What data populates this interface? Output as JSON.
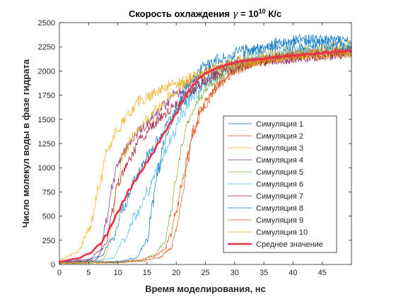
{
  "chart_data": {
    "type": "line",
    "title": {
      "prefix": "Скорость охлаждения ",
      "symbol": "γ",
      "eq": " = 10",
      "exponent": "10",
      "suffix": " К/с"
    },
    "xlabel": "Время моделирования, нс",
    "ylabel": "Число молекул воды в фазе гидрата",
    "xlim": [
      0,
      50
    ],
    "ylim": [
      0,
      2500
    ],
    "xticks": [
      0,
      5,
      10,
      15,
      20,
      25,
      30,
      35,
      40,
      45
    ],
    "yticks": [
      0,
      250,
      500,
      750,
      1000,
      1250,
      1500,
      1750,
      2000,
      2250,
      2500
    ],
    "grid": false,
    "legend_position": "lower-right",
    "series": [
      {
        "name": "Симуляция 1",
        "color": "#0072BD",
        "noise": 55,
        "points": [
          [
            0,
            30
          ],
          [
            4,
            35
          ],
          [
            7,
            80
          ],
          [
            9,
            250
          ],
          [
            11,
            600
          ],
          [
            13,
            900
          ],
          [
            15,
            1120
          ],
          [
            17,
            1300
          ],
          [
            19,
            1480
          ],
          [
            21,
            1650
          ],
          [
            24,
            1850
          ],
          [
            27,
            2000
          ],
          [
            30,
            2100
          ],
          [
            34,
            2220
          ],
          [
            38,
            2300
          ],
          [
            42,
            2330
          ],
          [
            46,
            2320
          ],
          [
            50,
            2300
          ]
        ]
      },
      {
        "name": "Симуляция 2",
        "color": "#D95319",
        "noise": 50,
        "points": [
          [
            0,
            10
          ],
          [
            8,
            20
          ],
          [
            14,
            35
          ],
          [
            17,
            70
          ],
          [
            19,
            160
          ],
          [
            20,
            350
          ],
          [
            21,
            700
          ],
          [
            22,
            1100
          ],
          [
            23,
            1380
          ],
          [
            24,
            1580
          ],
          [
            26,
            1780
          ],
          [
            28,
            1920
          ],
          [
            31,
            2040
          ],
          [
            35,
            2120
          ],
          [
            40,
            2180
          ],
          [
            45,
            2200
          ],
          [
            50,
            2180
          ]
        ]
      },
      {
        "name": "Симуляция 3",
        "color": "#EDB120",
        "noise": 60,
        "points": [
          [
            0,
            50
          ],
          [
            3,
            120
          ],
          [
            5,
            350
          ],
          [
            7,
            850
          ],
          [
            8,
            1150
          ],
          [
            10,
            1400
          ],
          [
            12,
            1580
          ],
          [
            14,
            1700
          ],
          [
            17,
            1800
          ],
          [
            20,
            1880
          ],
          [
            24,
            1970
          ],
          [
            28,
            2050
          ],
          [
            32,
            2120
          ],
          [
            36,
            2170
          ],
          [
            40,
            2200
          ],
          [
            45,
            2230
          ],
          [
            50,
            2280
          ]
        ]
      },
      {
        "name": "Симуляция 4",
        "color": "#7E2F8E",
        "noise": 55,
        "points": [
          [
            0,
            25
          ],
          [
            5,
            50
          ],
          [
            7,
            150
          ],
          [
            8,
            450
          ],
          [
            9,
            800
          ],
          [
            10,
            1050
          ],
          [
            12,
            1250
          ],
          [
            14,
            1400
          ],
          [
            16,
            1520
          ],
          [
            18,
            1650
          ],
          [
            20,
            1780
          ],
          [
            23,
            1900
          ],
          [
            26,
            2000
          ],
          [
            30,
            2060
          ],
          [
            35,
            2100
          ],
          [
            40,
            2130
          ],
          [
            45,
            2150
          ],
          [
            50,
            2200
          ]
        ]
      },
      {
        "name": "Симуляция 5",
        "color": "#77AC30",
        "noise": 50,
        "points": [
          [
            0,
            10
          ],
          [
            10,
            20
          ],
          [
            14,
            40
          ],
          [
            16,
            90
          ],
          [
            18,
            220
          ],
          [
            19,
            500
          ],
          [
            20,
            900
          ],
          [
            21,
            1250
          ],
          [
            22,
            1480
          ],
          [
            24,
            1720
          ],
          [
            26,
            1880
          ],
          [
            29,
            2000
          ],
          [
            33,
            2100
          ],
          [
            38,
            2150
          ],
          [
            43,
            2180
          ],
          [
            50,
            2200
          ]
        ]
      },
      {
        "name": "Симуляция 6",
        "color": "#4DBEEE",
        "noise": 60,
        "points": [
          [
            0,
            20
          ],
          [
            5,
            30
          ],
          [
            9,
            60
          ],
          [
            11,
            250
          ],
          [
            13,
            500
          ],
          [
            15,
            750
          ],
          [
            17,
            1000
          ],
          [
            19,
            1280
          ],
          [
            21,
            1550
          ],
          [
            23,
            1750
          ],
          [
            26,
            1920
          ],
          [
            30,
            2050
          ],
          [
            35,
            2150
          ],
          [
            40,
            2200
          ],
          [
            45,
            2230
          ],
          [
            50,
            2250
          ]
        ]
      },
      {
        "name": "Симуляция 7",
        "color": "#A2142F",
        "noise": 55,
        "points": [
          [
            0,
            20
          ],
          [
            6,
            40
          ],
          [
            8,
            200
          ],
          [
            9,
            550
          ],
          [
            10,
            850
          ],
          [
            12,
            1100
          ],
          [
            14,
            1300
          ],
          [
            16,
            1450
          ],
          [
            18,
            1550
          ],
          [
            20,
            1650
          ],
          [
            22,
            1780
          ],
          [
            25,
            1900
          ],
          [
            28,
            2000
          ],
          [
            32,
            2080
          ],
          [
            37,
            2120
          ],
          [
            42,
            2150
          ],
          [
            50,
            2180
          ]
        ]
      },
      {
        "name": "Симуляция 8",
        "color": "#0072BD",
        "noise": 60,
        "points": [
          [
            0,
            20
          ],
          [
            10,
            30
          ],
          [
            13,
            60
          ],
          [
            15,
            250
          ],
          [
            16,
            650
          ],
          [
            17,
            1000
          ],
          [
            18,
            1300
          ],
          [
            20,
            1600
          ],
          [
            22,
            1850
          ],
          [
            25,
            2050
          ],
          [
            28,
            2150
          ],
          [
            32,
            2220
          ],
          [
            36,
            2250
          ],
          [
            40,
            2270
          ],
          [
            45,
            2280
          ],
          [
            50,
            2260
          ]
        ]
      },
      {
        "name": "Симуляция 9",
        "color": "#D95319",
        "noise": 50,
        "points": [
          [
            0,
            15
          ],
          [
            10,
            25
          ],
          [
            13,
            40
          ],
          [
            16,
            80
          ],
          [
            18,
            150
          ],
          [
            19,
            300
          ],
          [
            20,
            550
          ],
          [
            21,
            850
          ],
          [
            22,
            1150
          ],
          [
            23,
            1400
          ],
          [
            25,
            1650
          ],
          [
            27,
            1850
          ],
          [
            30,
            2000
          ],
          [
            34,
            2100
          ],
          [
            38,
            2150
          ],
          [
            43,
            2180
          ],
          [
            50,
            2200
          ]
        ]
      },
      {
        "name": "Симуляция 10",
        "color": "#EDB120",
        "noise": 55,
        "points": [
          [
            0,
            15
          ],
          [
            7,
            25
          ],
          [
            8,
            100
          ],
          [
            9,
            400
          ],
          [
            10,
            850
          ],
          [
            11,
            1150
          ],
          [
            13,
            1350
          ],
          [
            15,
            1500
          ],
          [
            17,
            1620
          ],
          [
            19,
            1750
          ],
          [
            21,
            1850
          ],
          [
            24,
            1950
          ],
          [
            27,
            2020
          ],
          [
            31,
            2080
          ],
          [
            36,
            2120
          ],
          [
            41,
            2150
          ],
          [
            50,
            2180
          ]
        ]
      },
      {
        "name": "Среднее значение",
        "color": "#E8334A",
        "noise": 8,
        "thick": true,
        "points": [
          [
            0,
            30
          ],
          [
            3,
            60
          ],
          [
            5,
            110
          ],
          [
            7,
            210
          ],
          [
            8,
            300
          ],
          [
            9,
            420
          ],
          [
            10,
            540
          ],
          [
            11,
            660
          ],
          [
            12,
            770
          ],
          [
            13,
            870
          ],
          [
            14,
            960
          ],
          [
            15,
            1060
          ],
          [
            16,
            1150
          ],
          [
            17,
            1260
          ],
          [
            18,
            1360
          ],
          [
            19,
            1460
          ],
          [
            20,
            1560
          ],
          [
            21,
            1680
          ],
          [
            22,
            1780
          ],
          [
            23,
            1860
          ],
          [
            24,
            1930
          ],
          [
            25,
            1980
          ],
          [
            27,
            2030
          ],
          [
            29,
            2070
          ],
          [
            31,
            2100
          ],
          [
            34,
            2120
          ],
          [
            37,
            2140
          ],
          [
            40,
            2160
          ],
          [
            43,
            2175
          ],
          [
            46,
            2190
          ],
          [
            50,
            2210
          ]
        ]
      }
    ]
  }
}
